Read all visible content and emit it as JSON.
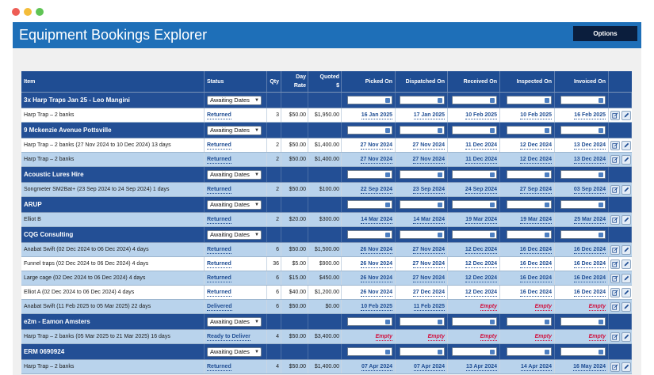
{
  "app": {
    "title": "Equipment Bookings Explorer",
    "options_label": "Options"
  },
  "columns": {
    "item": "Item",
    "status": "Status",
    "qty": "Qty",
    "day_rate_1": "Day",
    "day_rate_2": "Rate",
    "quoted_1": "Quoted",
    "quoted_2": "$",
    "picked": "Picked On",
    "dispatched": "Dispatched On",
    "received": "Received On",
    "inspected": "Inspected On",
    "invoiced": "Invoiced On"
  },
  "colors": {
    "header": "#1f4d93",
    "appbar": "#1e6fb8",
    "link": "#1f4d93",
    "empty": "#d1123f"
  },
  "icons": {
    "calendar": "calendar-icon",
    "edit": "edit-icon",
    "pencil": "pencil-icon",
    "chevron": "chevron-down-icon"
  },
  "rows": [
    {
      "type": "group",
      "title": "3x Harp Traps Jan 25 - Leo Mangini",
      "status": "Awaiting Dates"
    },
    {
      "type": "item",
      "style": "white",
      "item": "Harp Trap – 2 banks",
      "status": "Returned",
      "qty": "3",
      "rate": "$50.00",
      "quoted": "$1,950.00",
      "picked": "16 Jan 2025",
      "dispatched": "17 Jan 2025",
      "received": "10 Feb 2025",
      "inspected": "10 Feb 2025",
      "invoiced": "16 Feb 2025"
    },
    {
      "type": "group",
      "title": "9 Mckenzie Avenue Pottsville",
      "status": "Awaiting Dates"
    },
    {
      "type": "item",
      "style": "white",
      "item": "Harp Trap – 2 banks (27 Nov 2024 to 10 Dec 2024) 13 days",
      "status": "Returned",
      "qty": "2",
      "rate": "$50.00",
      "quoted": "$1,400.00",
      "picked": "27 Nov 2024",
      "dispatched": "27 Nov 2024",
      "received": "11 Dec 2024",
      "inspected": "12 Dec 2024",
      "invoiced": "13 Dec 2024"
    },
    {
      "type": "item",
      "style": "alt",
      "item": "Harp Trap – 2 banks",
      "status": "Returned",
      "qty": "2",
      "rate": "$50.00",
      "quoted": "$1,400.00",
      "picked": "27 Nov 2024",
      "dispatched": "27 Nov 2024",
      "received": "11 Dec 2024",
      "inspected": "12 Dec 2024",
      "invoiced": "13 Dec 2024"
    },
    {
      "type": "group",
      "title": "Acoustic Lures Hire",
      "status": "Awaiting Dates"
    },
    {
      "type": "item",
      "style": "alt",
      "item": "Songmeter SM2Bat+ (23 Sep 2024 to 24 Sep 2024) 1 days",
      "status": "Returned",
      "qty": "2",
      "rate": "$50.00",
      "quoted": "$100.00",
      "picked": "22 Sep 2024",
      "dispatched": "23 Sep 2024",
      "received": "24 Sep 2024",
      "inspected": "27 Sep 2024",
      "invoiced": "03 Sep 2024"
    },
    {
      "type": "group",
      "title": "ARUP",
      "status": "Awaiting Dates"
    },
    {
      "type": "item",
      "style": "alt",
      "item": "Elliot B",
      "status": "Returned",
      "qty": "2",
      "rate": "$20.00",
      "quoted": "$300.00",
      "picked": "14 Mar 2024",
      "dispatched": "14 Mar 2024",
      "received": "19 Mar 2024",
      "inspected": "19 Mar 2024",
      "invoiced": "25 Mar 2024"
    },
    {
      "type": "group",
      "title": "CQG Consulting",
      "status": "Awaiting Dates"
    },
    {
      "type": "item",
      "style": "alt",
      "item": "Anabat Swift (02 Dec 2024 to 06 Dec 2024) 4 days",
      "status": "Returned",
      "qty": "6",
      "rate": "$50.00",
      "quoted": "$1,500.00",
      "picked": "26 Nov 2024",
      "dispatched": "27 Nov 2024",
      "received": "12 Dec 2024",
      "inspected": "16 Dec 2024",
      "invoiced": "16 Dec 2024"
    },
    {
      "type": "item",
      "style": "white",
      "item": "Funnel traps (02 Dec 2024 to 06 Dec 2024) 4 days",
      "status": "Returned",
      "qty": "36",
      "rate": "$5.00",
      "quoted": "$900.00",
      "picked": "26 Nov 2024",
      "dispatched": "27 Nov 2024",
      "received": "12 Dec 2024",
      "inspected": "16 Dec 2024",
      "invoiced": "16 Dec 2024"
    },
    {
      "type": "item",
      "style": "alt",
      "item": "Large cage (02 Dec 2024 to 06 Dec 2024) 4 days",
      "status": "Returned",
      "qty": "6",
      "rate": "$15.00",
      "quoted": "$450.00",
      "picked": "26 Nov 2024",
      "dispatched": "27 Nov 2024",
      "received": "12 Dec 2024",
      "inspected": "16 Dec 2024",
      "invoiced": "16 Dec 2024"
    },
    {
      "type": "item",
      "style": "white",
      "item": "Elliot A (02 Dec 2024 to 06 Dec 2024) 4 days",
      "status": "Returned",
      "qty": "6",
      "rate": "$40.00",
      "quoted": "$1,200.00",
      "picked": "26 Nov 2024",
      "dispatched": "27 Dec 2024",
      "received": "12 Dec 2024",
      "inspected": "16 Dec 2024",
      "invoiced": "16 Dec 2024"
    },
    {
      "type": "item",
      "style": "alt",
      "item": "Anabat Swift (11 Feb 2025 to 05 Mar 2025) 22 days",
      "status": "Delivered",
      "qty": "6",
      "rate": "$50.00",
      "quoted": "$0.00",
      "picked": "10 Feb 2025",
      "dispatched": "11 Feb 2025",
      "received": "Empty",
      "inspected": "Empty",
      "invoiced": "Empty"
    },
    {
      "type": "group",
      "title": "e2m - Eamon Amsters",
      "status": "Awaiting Dates"
    },
    {
      "type": "item",
      "style": "alt",
      "item": "Harp Trap – 2 banks (05 Mar 2025 to 21 Mar 2025) 16 days",
      "status": "Ready to Deliver",
      "qty": "4",
      "rate": "$50.00",
      "quoted": "$3,400.00",
      "picked": "Empty",
      "dispatched": "Empty",
      "received": "Empty",
      "inspected": "Empty",
      "invoiced": "Empty"
    },
    {
      "type": "group",
      "title": "ERM 0690924",
      "status": "Awaiting Dates"
    },
    {
      "type": "item",
      "style": "alt",
      "item": "Harp Trap – 2 banks",
      "status": "Returned",
      "qty": "4",
      "rate": "$50.00",
      "quoted": "$1,400.00",
      "picked": "07 Apr 2024",
      "dispatched": "07 Apr 2024",
      "received": "13 Apr 2024",
      "inspected": "14 Apr 2024",
      "invoiced": "16 May 2024"
    }
  ]
}
